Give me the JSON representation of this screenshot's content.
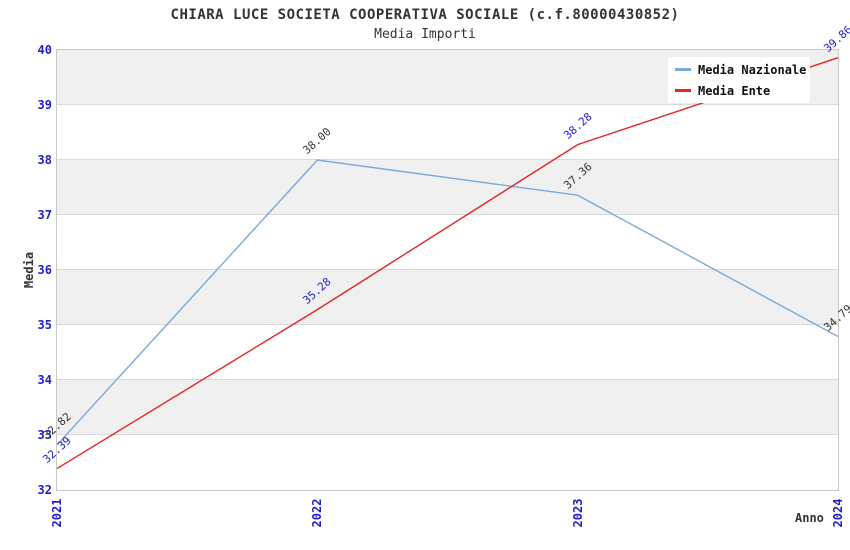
{
  "chart_data": {
    "type": "line",
    "title": "CHIARA LUCE SOCIETA COOPERATIVA SOCIALE (c.f.80000430852)",
    "subtitle": "Media Importi",
    "xlabel": "Anno",
    "ylabel": "Media",
    "categories": [
      "2021",
      "2022",
      "2023",
      "2024"
    ],
    "ylim": [
      32,
      40
    ],
    "y_ticks": [
      32,
      33,
      34,
      35,
      36,
      37,
      38,
      39,
      40
    ],
    "grid": "horizontal-bands",
    "legend_position": "top-right",
    "value_decimals": 2,
    "series": [
      {
        "name": "Media Nazionale",
        "color": "#7aaadc",
        "label_color": "#333333",
        "values": [
          32.82,
          38.0,
          37.36,
          34.79
        ]
      },
      {
        "name": "Media Ente",
        "color": "#e62626",
        "label_color": "#2020cc",
        "values": [
          32.39,
          35.28,
          38.28,
          39.86
        ]
      }
    ]
  },
  "colors": {
    "tick_label": "#2020cc",
    "text": "#333333",
    "band_gray": "#f0f0f0",
    "band_white": "#ffffff",
    "gridline": "#d9d9d9",
    "plot_border": "#c9c9c9",
    "background": "#ffffff"
  }
}
